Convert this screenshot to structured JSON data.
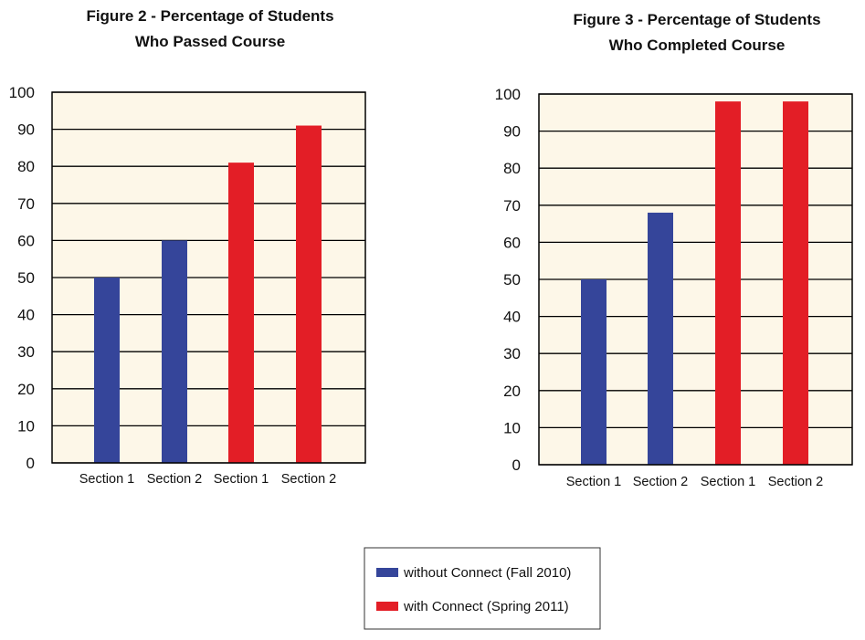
{
  "chart_data": [
    {
      "type": "bar",
      "title_lines": [
        "Figure 2 - Percentage of Students",
        "Who Passed Course"
      ],
      "categories": [
        "Section 1",
        "Section 2",
        "Section 1",
        "Section 2"
      ],
      "values": [
        50,
        60,
        81,
        91
      ],
      "bar_series": [
        "without",
        "without",
        "with",
        "with"
      ],
      "ylim": [
        0,
        100
      ],
      "yticks": [
        "0",
        "10",
        "20",
        "30",
        "40",
        "50",
        "60",
        "70",
        "80",
        "90",
        "100"
      ],
      "grid": true
    },
    {
      "type": "bar",
      "title_lines": [
        "Figure 3 - Percentage of Students",
        "Who Completed Course"
      ],
      "categories": [
        "Section 1",
        "Section 2",
        "Section 1",
        "Section 2"
      ],
      "values": [
        50,
        68,
        98,
        98
      ],
      "bar_series": [
        "without",
        "without",
        "with",
        "with"
      ],
      "ylim": [
        0,
        100
      ],
      "yticks": [
        "0",
        "10",
        "20",
        "30",
        "40",
        "50",
        "60",
        "70",
        "80",
        "90",
        "100"
      ],
      "grid": true
    }
  ],
  "legend": {
    "position": "bottom-center",
    "items": [
      {
        "key": "without",
        "label": "without Connect (Fall 2010)",
        "color": "#35459a"
      },
      {
        "key": "with",
        "label": "with Connect (Spring 2011)",
        "color": "#e31e26"
      }
    ]
  },
  "colors": {
    "plot_background": "#fdf7e8",
    "grid": "#000000"
  }
}
